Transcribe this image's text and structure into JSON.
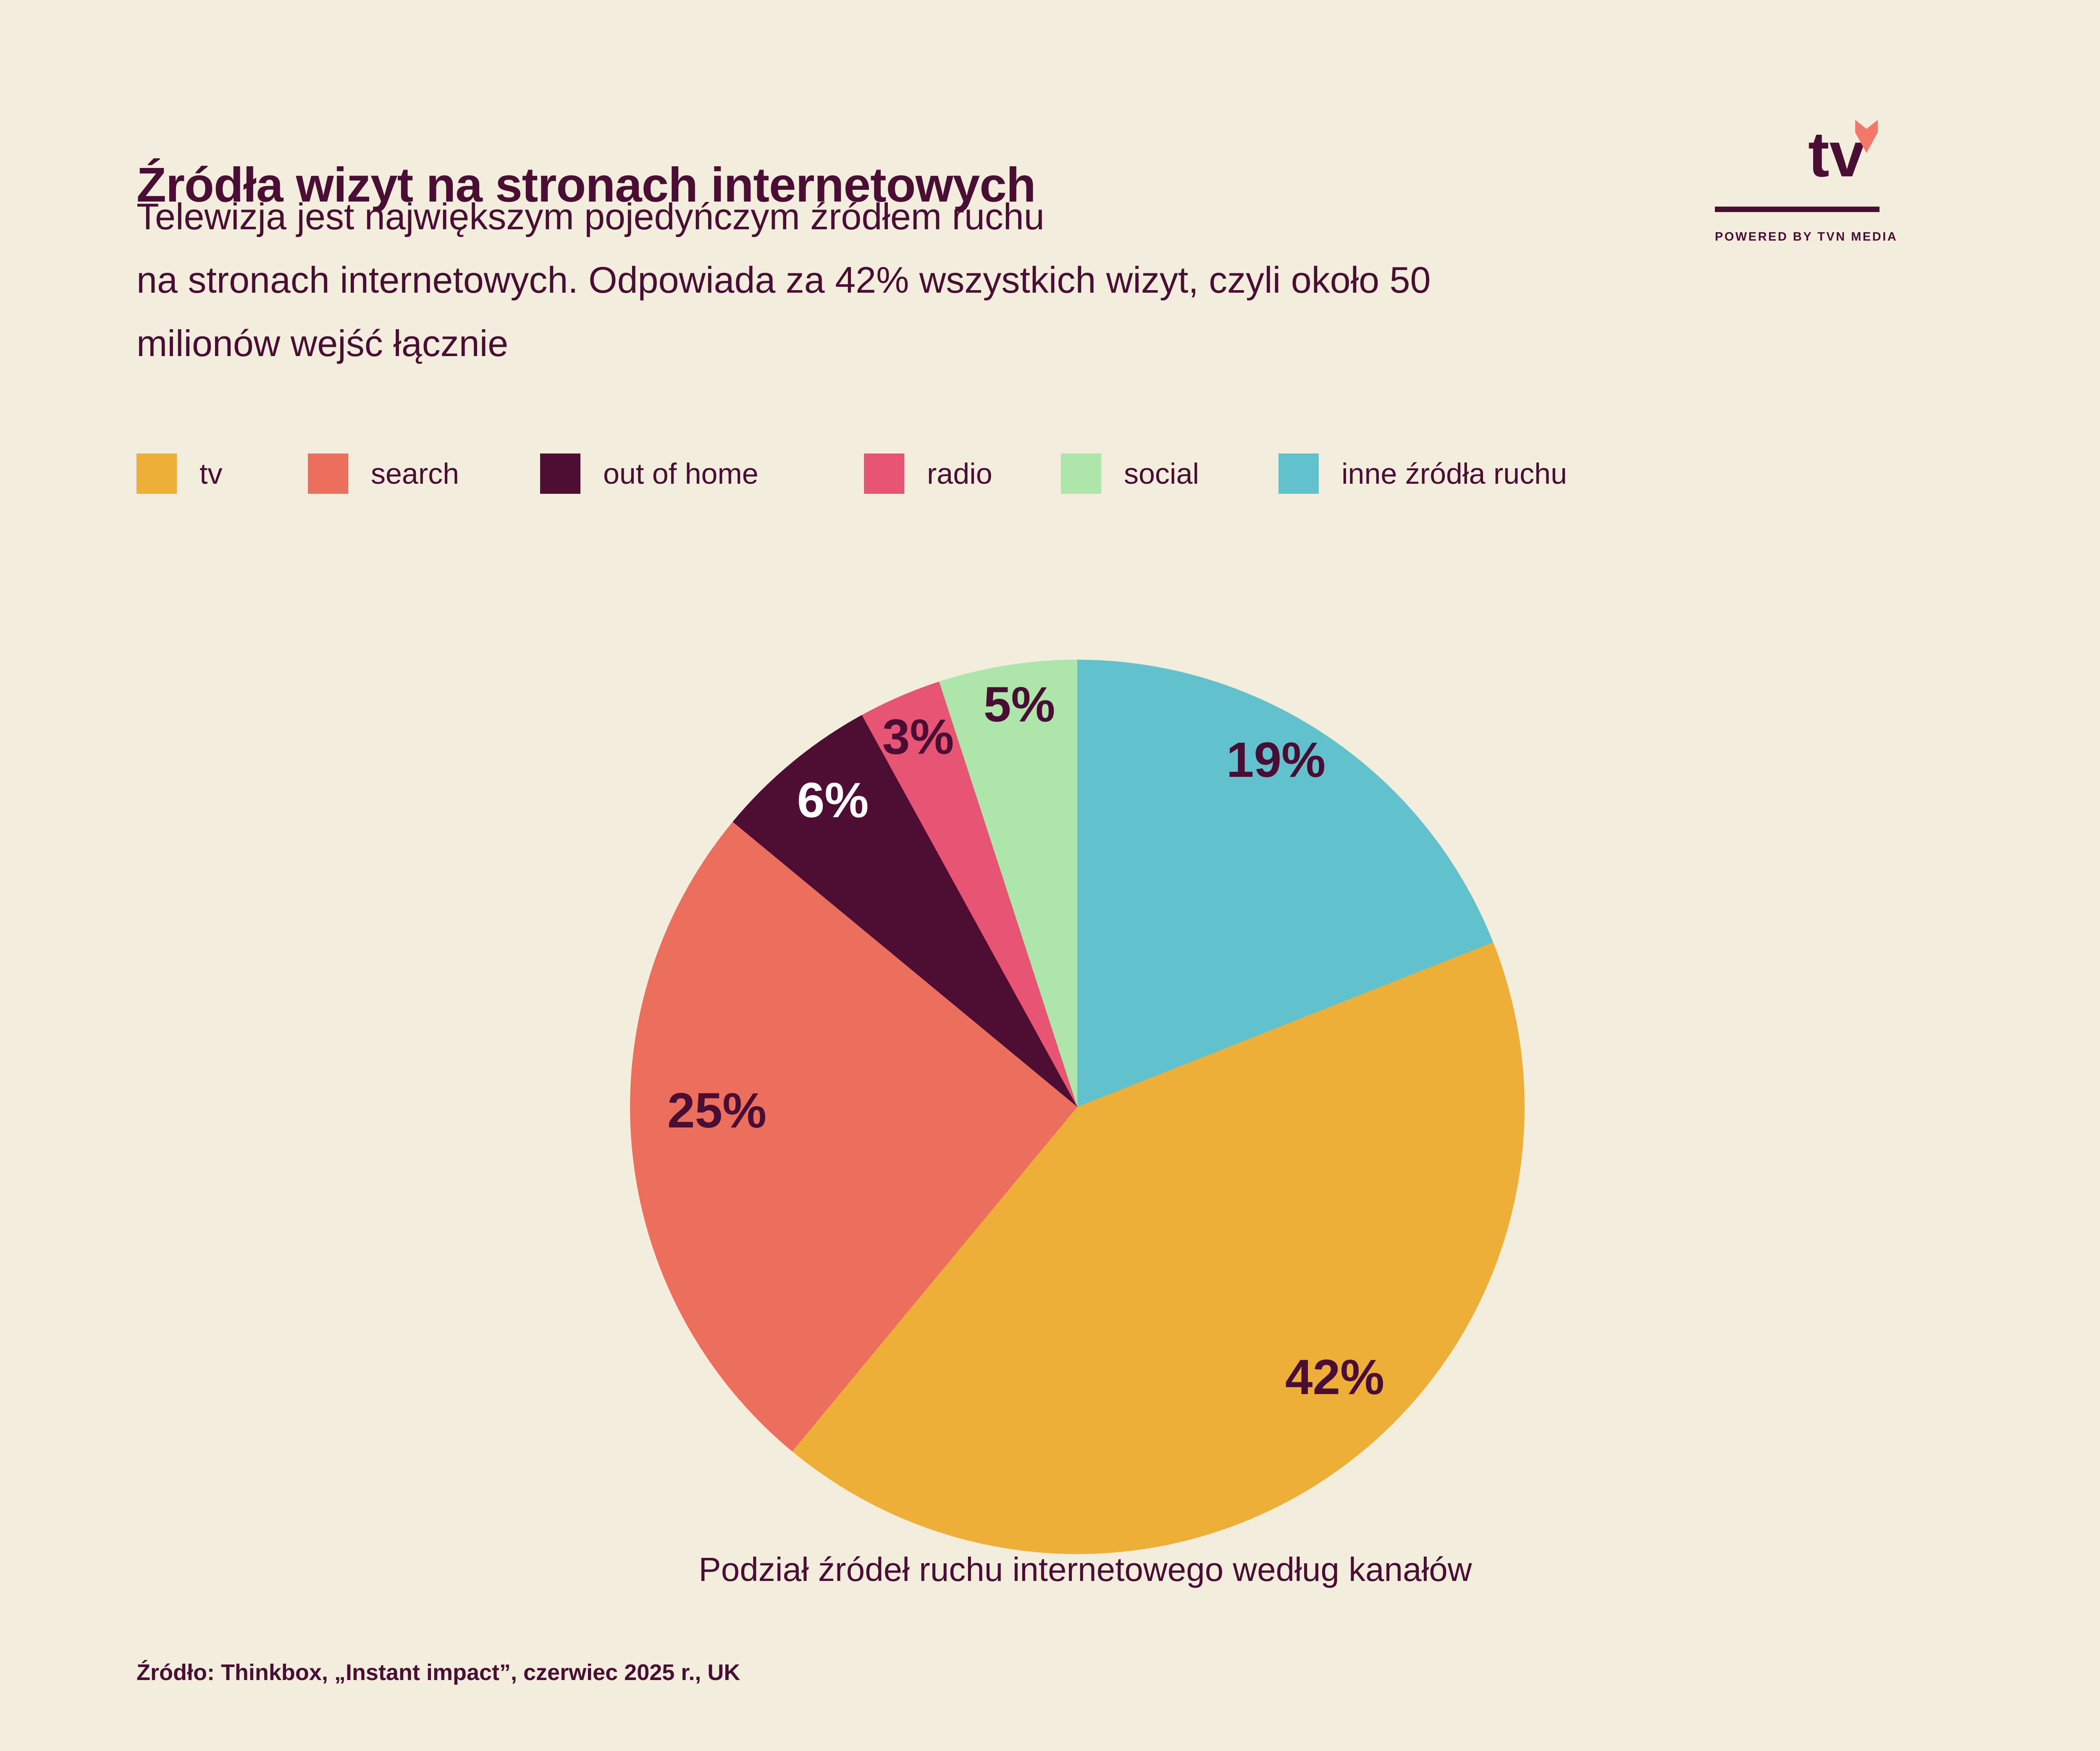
{
  "page": {
    "background": "#F3EDDE",
    "text_color": "#4A0D33"
  },
  "header": {
    "title": "Źródła wizyt na stronach internetowych",
    "subtitle_lines": [
      "Telewizja jest największym pojedyńczym źródłem ruchu",
      "na stronach internetowych. Odpowiada za 42% wszystkich wizyt, czyli około 50",
      "milionów wejść łącznie"
    ]
  },
  "logo": {
    "wordmark": "tv",
    "tagline": "POWERED BY TVN MEDIA",
    "heart_color": "#F3776B"
  },
  "chart_data": {
    "type": "pie",
    "title": "Podział źródeł ruchu internetowego według kanałów",
    "unit": "%",
    "legend_position": "top",
    "start_angle": "12 o'clock, clockwise",
    "slices": [
      {
        "label": "inne źródła ruchu",
        "value": 19,
        "color": "#61C1CC",
        "label_color": "#4A0D33"
      },
      {
        "label": "tv",
        "value": 42,
        "color": "#EDAF38",
        "label_color": "#4A0D33"
      },
      {
        "label": "search",
        "value": 25,
        "color": "#EC6E5D",
        "label_color": "#4A0D33"
      },
      {
        "label": "out of home",
        "value": 6,
        "color": "#4E0E34",
        "label_color": "#FFFFFF"
      },
      {
        "label": "radio",
        "value": 3,
        "color": "#E85574",
        "label_color": "#4A0D33"
      },
      {
        "label": "social",
        "value": 5,
        "color": "#ADE5AB",
        "label_color": "#4A0D33"
      }
    ],
    "legend_order": [
      "tv",
      "search",
      "out of home",
      "radio",
      "social",
      "inne źródła ruchu"
    ]
  },
  "source": "Źródło: Thinkbox, „Instant impact”, czerwiec 2025 r., UK"
}
